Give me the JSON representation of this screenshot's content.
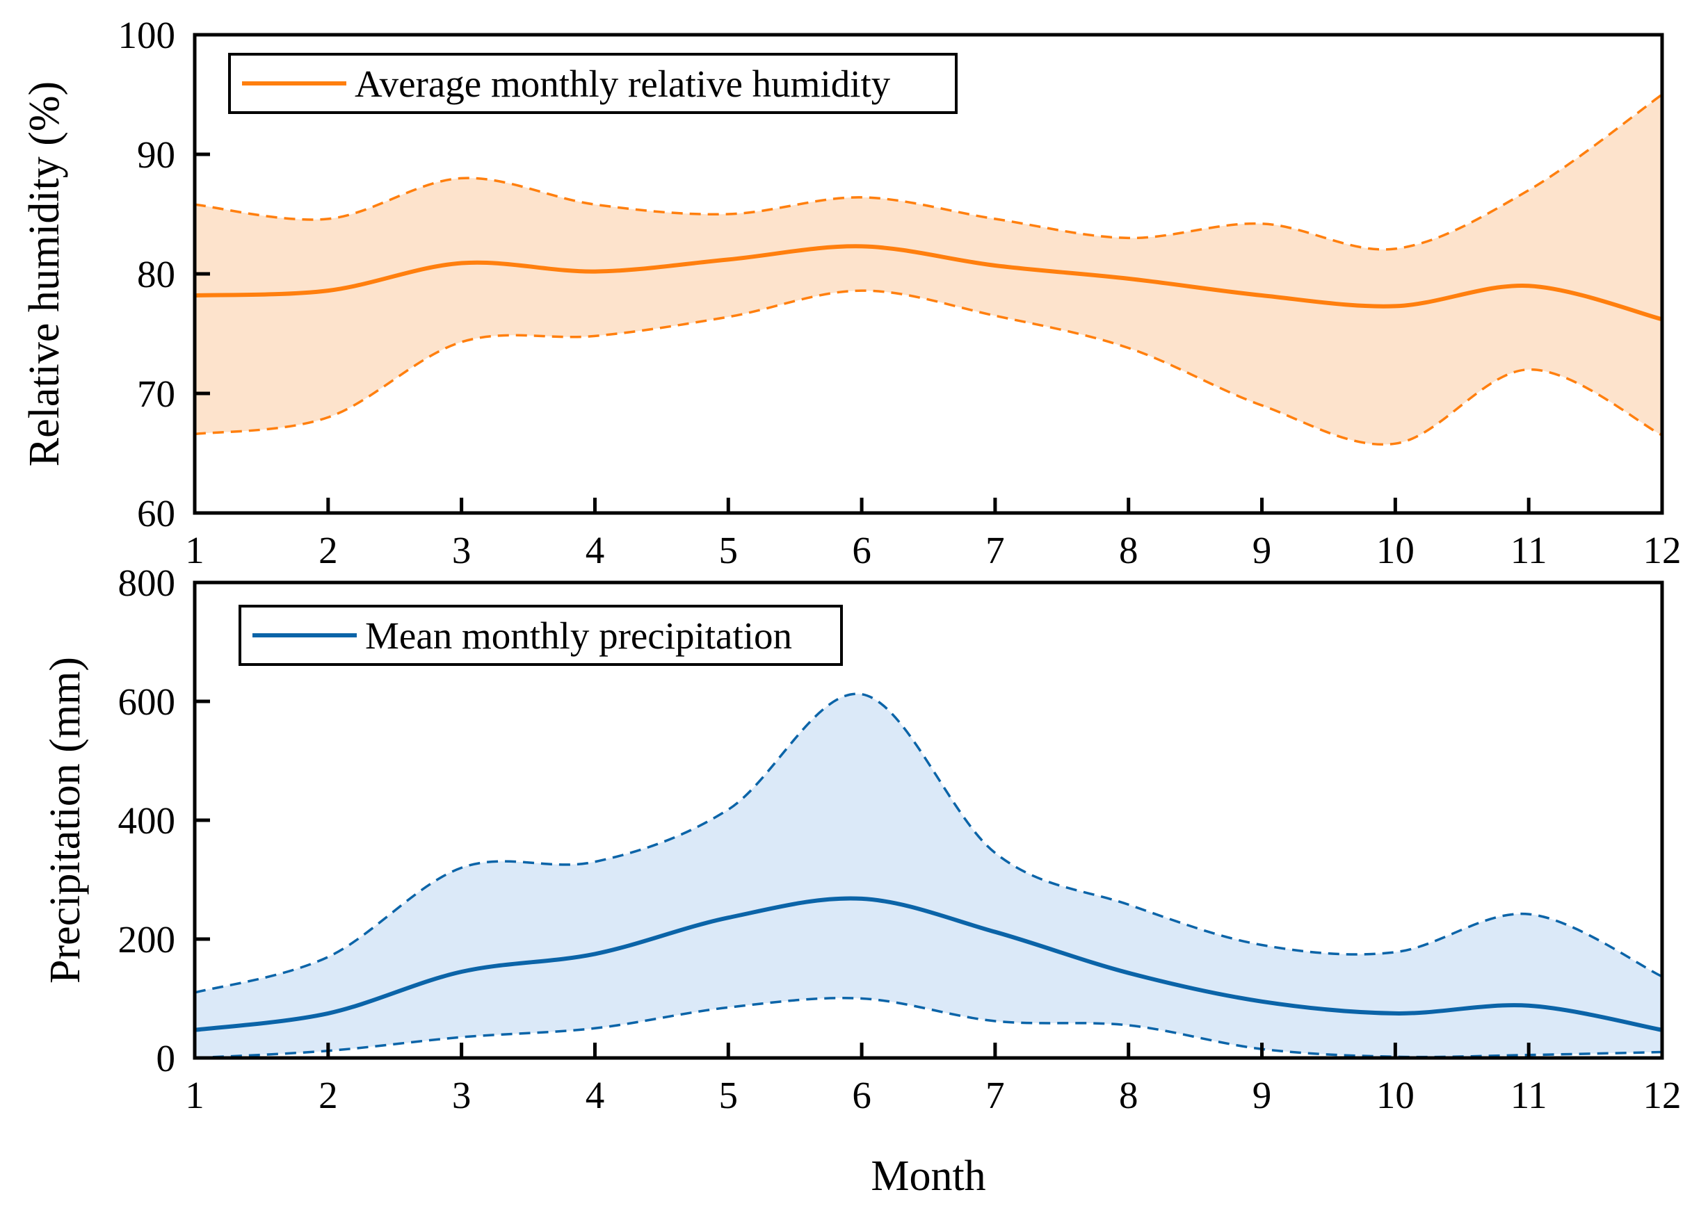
{
  "chart_data": [
    {
      "type": "line",
      "title": "",
      "xlabel": "",
      "ylabel": "Relative humidity (%)",
      "xlim": [
        1,
        12
      ],
      "ylim": [
        60,
        100
      ],
      "xticks": [
        "1",
        "2",
        "3",
        "4",
        "5",
        "6",
        "7",
        "8",
        "9",
        "10",
        "11",
        "12"
      ],
      "yticks": [
        "60",
        "70",
        "80",
        "90",
        "100"
      ],
      "grid": false,
      "legend": {
        "position": "top-left",
        "entries": [
          "Average monthly relative humidity"
        ]
      },
      "color": "#FF7F0E",
      "band_color": "#FDE3CC",
      "x": [
        1,
        2,
        3,
        4,
        5,
        6,
        7,
        8,
        9,
        10,
        11,
        12
      ],
      "series": [
        {
          "name": "Average monthly relative humidity",
          "values": [
            78.2,
            78.6,
            80.9,
            80.2,
            81.2,
            82.3,
            80.7,
            79.6,
            78.2,
            77.3,
            79.0,
            76.2
          ]
        },
        {
          "name": "Upper bound",
          "values": [
            85.8,
            84.6,
            88.0,
            85.8,
            85.0,
            86.4,
            84.6,
            83.0,
            84.2,
            82.1,
            87.0,
            95.0
          ]
        },
        {
          "name": "Lower bound",
          "values": [
            66.6,
            68.0,
            74.3,
            74.8,
            76.4,
            78.6,
            76.5,
            73.8,
            69.0,
            65.8,
            72.0,
            66.5
          ]
        }
      ]
    },
    {
      "type": "line",
      "title": "",
      "xlabel": "Month",
      "ylabel": "Precipitation (mm)",
      "xlim": [
        1,
        12
      ],
      "ylim": [
        0,
        800
      ],
      "xticks": [
        "1",
        "2",
        "3",
        "4",
        "5",
        "6",
        "7",
        "8",
        "9",
        "10",
        "11",
        "12"
      ],
      "yticks": [
        "0",
        "200",
        "400",
        "600",
        "800"
      ],
      "grid": false,
      "legend": {
        "position": "top-left",
        "entries": [
          "Mean monthly precipitation"
        ]
      },
      "color": "#0B64A8",
      "band_color": "#DBE9F8",
      "x": [
        1,
        2,
        3,
        4,
        5,
        6,
        7,
        8,
        9,
        10,
        11,
        12
      ],
      "series": [
        {
          "name": "Mean monthly precipitation",
          "values": [
            47,
            75,
            145,
            175,
            236,
            268,
            212,
            143,
            95,
            75,
            88,
            47
          ]
        },
        {
          "name": "Upper bound",
          "values": [
            110,
            170,
            320,
            330,
            418,
            612,
            345,
            258,
            190,
            178,
            242,
            137
          ]
        },
        {
          "name": "Lower bound",
          "values": [
            0,
            12,
            35,
            50,
            85,
            100,
            62,
            55,
            15,
            2,
            5,
            10
          ]
        }
      ]
    }
  ]
}
